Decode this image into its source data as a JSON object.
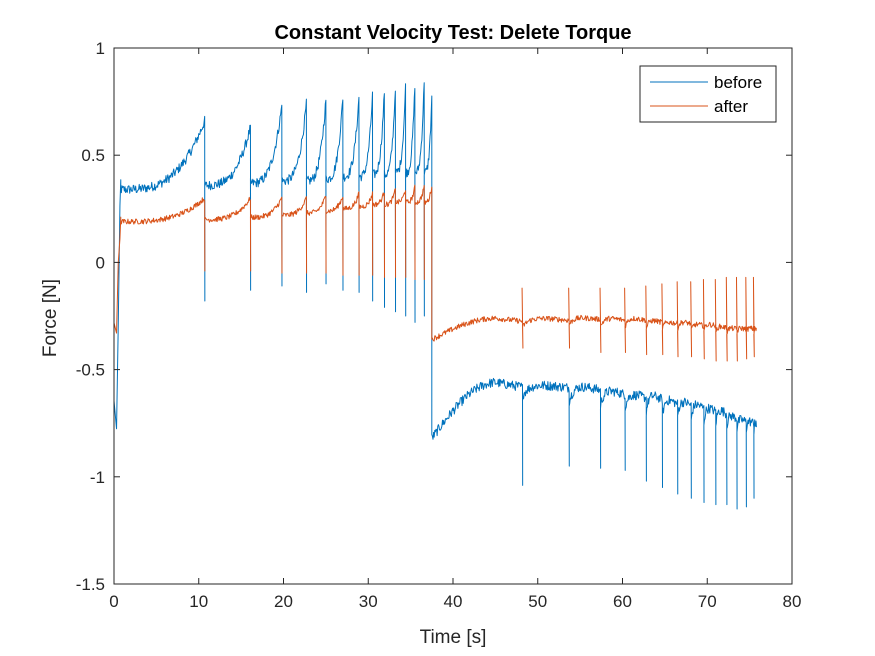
{
  "chart_data": {
    "type": "line",
    "title": "Constant Velocity Test: Delete Torque",
    "xlabel": "Time [s]",
    "ylabel": "Force [N]",
    "xlim": [
      0,
      80
    ],
    "ylim": [
      -1.5,
      1
    ],
    "xticks": [
      0,
      10,
      20,
      30,
      40,
      50,
      60,
      70,
      80
    ],
    "xtick_labels": [
      "0",
      "10",
      "20",
      "30",
      "40",
      "50",
      "60",
      "70",
      "80"
    ],
    "yticks": [
      -1.5,
      -1,
      -0.5,
      0,
      0.5,
      1
    ],
    "ytick_labels": [
      "-1.5",
      "-1",
      "-0.5",
      "0",
      "0.5",
      "1"
    ],
    "grid": false,
    "legend_position": "top-right",
    "series": [
      {
        "name": "before",
        "color": "#0072BD",
        "segments": [
          {
            "t_start": 0.0,
            "t_end": 0.8,
            "kind": "ramp",
            "points": [
              [
                0,
                -0.65
              ],
              [
                0.3,
                -0.77
              ],
              [
                0.5,
                -0.3
              ],
              [
                0.7,
                0.25
              ],
              [
                0.8,
                0.38
              ]
            ]
          },
          {
            "t_start": 0.8,
            "t_end": 37.5,
            "kind": "phase",
            "spikes": [
              10.7,
              16.1,
              19.8,
              22.7,
              25.0,
              27.0,
              28.9,
              30.5,
              31.9,
              33.2,
              34.4,
              35.5,
              36.6
            ],
            "base_values": [
              0.34,
              0.36,
              0.37,
              0.38,
              0.38,
              0.39,
              0.4,
              0.4,
              0.41,
              0.41,
              0.42,
              0.42,
              0.42,
              0.42
            ],
            "peak_values": [
              0.66,
              0.63,
              0.73,
              0.74,
              0.76,
              0.77,
              0.77,
              0.78,
              0.8,
              0.82,
              0.82,
              0.83,
              0.85,
              0.78
            ],
            "dip_values": [
              -0.18,
              -0.13,
              -0.11,
              -0.14,
              -0.1,
              -0.13,
              -0.14,
              -0.18,
              -0.21,
              -0.23,
              -0.25,
              -0.28,
              -0.25
            ]
          },
          {
            "t_start": 37.5,
            "t_end": 75.8,
            "kind": "phase",
            "spikes": [
              48.2,
              53.7,
              57.4,
              60.3,
              62.8,
              64.7,
              66.5,
              68.1,
              69.6,
              71.0,
              72.3,
              73.5,
              74.6,
              75.5
            ],
            "base_values": [
              -0.62,
              -0.62,
              -0.65,
              -0.67,
              -0.68,
              -0.7,
              -0.72,
              -0.72,
              -0.74,
              -0.75,
              -0.76,
              -0.77,
              -0.78,
              -0.78,
              -0.8
            ],
            "peak_values": [
              -0.56,
              -0.56,
              -0.56,
              -0.58,
              -0.6,
              -0.6,
              -0.62,
              -0.63,
              -0.64,
              -0.66,
              -0.67,
              -0.7,
              -0.72,
              -0.73,
              -0.74
            ],
            "dip_values": [
              -1.04,
              -0.95,
              -0.96,
              -0.97,
              -1.02,
              -1.05,
              -1.08,
              -1.1,
              -1.12,
              -1.13,
              -1.13,
              -1.15,
              -1.14,
              -1.1
            ],
            "start_value": -0.82
          }
        ]
      },
      {
        "name": "after",
        "color": "#D95319",
        "segments": [
          {
            "t_start": 0.0,
            "t_end": 0.8,
            "kind": "ramp",
            "points": [
              [
                0,
                -0.28
              ],
              [
                0.3,
                -0.32
              ],
              [
                0.5,
                0.0
              ],
              [
                0.7,
                0.12
              ],
              [
                0.8,
                0.2
              ]
            ]
          },
          {
            "t_start": 0.8,
            "t_end": 37.5,
            "kind": "phase",
            "spikes": [
              10.7,
              16.1,
              19.8,
              22.7,
              25.0,
              27.0,
              28.9,
              30.5,
              31.9,
              33.2,
              34.4,
              35.5,
              36.6
            ],
            "base_values": [
              0.19,
              0.2,
              0.21,
              0.22,
              0.23,
              0.24,
              0.25,
              0.26,
              0.27,
              0.27,
              0.28,
              0.28,
              0.28,
              0.28
            ],
            "peak_values": [
              0.3,
              0.3,
              0.3,
              0.3,
              0.31,
              0.31,
              0.32,
              0.32,
              0.33,
              0.34,
              0.34,
              0.35,
              0.36,
              0.36
            ],
            "dip_values": [
              -0.04,
              -0.04,
              -0.05,
              -0.05,
              -0.05,
              -0.06,
              -0.06,
              -0.06,
              -0.07,
              -0.07,
              -0.07,
              -0.08,
              -0.08
            ]
          },
          {
            "t_start": 37.5,
            "t_end": 75.8,
            "kind": "phase",
            "spikes": [
              48.2,
              53.7,
              57.4,
              60.3,
              62.8,
              64.7,
              66.5,
              68.1,
              69.6,
              71.0,
              72.3,
              73.5,
              74.6,
              75.5
            ],
            "base_values": [
              -0.3,
              -0.3,
              -0.29,
              -0.3,
              -0.3,
              -0.31,
              -0.31,
              -0.31,
              -0.32,
              -0.32,
              -0.33,
              -0.33,
              -0.33,
              -0.33,
              -0.34
            ],
            "peak_values": [
              -0.26,
              -0.25,
              -0.25,
              -0.25,
              -0.25,
              -0.26,
              -0.27,
              -0.27,
              -0.28,
              -0.28,
              -0.29,
              -0.3,
              -0.3,
              -0.3,
              -0.3
            ],
            "dip_values": [
              -0.4,
              -0.4,
              -0.42,
              -0.42,
              -0.43,
              -0.43,
              -0.44,
              -0.44,
              -0.45,
              -0.46,
              -0.46,
              -0.46,
              -0.45,
              -0.44
            ],
            "up_spike_values": [
              -0.12,
              -0.12,
              -0.12,
              -0.12,
              -0.11,
              -0.1,
              -0.09,
              -0.09,
              -0.08,
              -0.08,
              -0.07,
              -0.07,
              -0.07,
              -0.07
            ],
            "start_value": -0.36
          }
        ]
      }
    ]
  }
}
